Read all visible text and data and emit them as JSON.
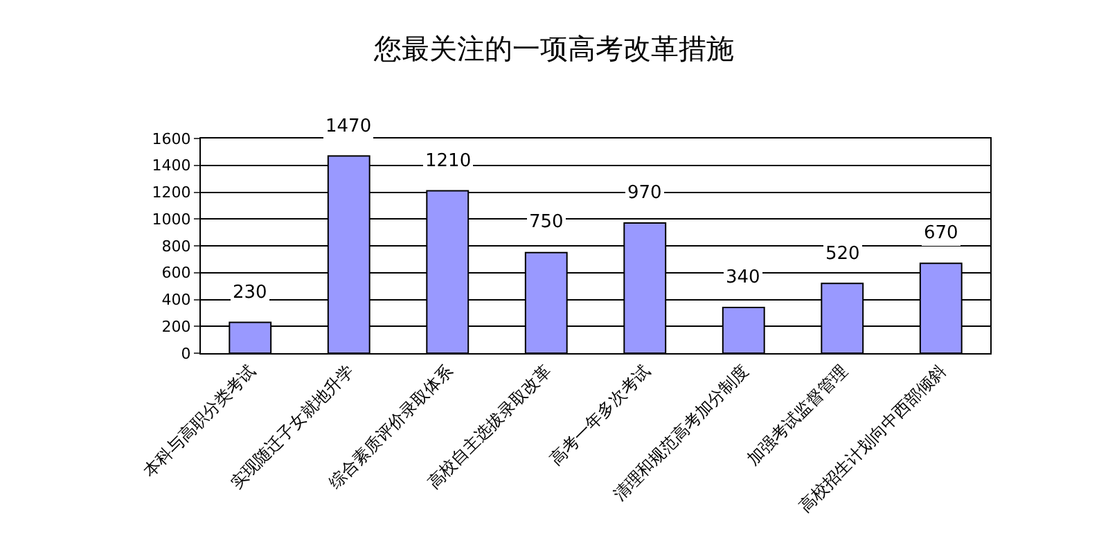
{
  "chart_data": {
    "type": "bar",
    "title": "您最关注的一项高考改革措施",
    "categories": [
      "本科与高职分类考试",
      "实现随迁子女就地升学",
      "综合素质评价录取体系",
      "高校自主选拔录取改革",
      "高考一年多次考试",
      "清理和规范高考加分制度",
      "加强考试监督管理",
      "高校招生计划向中西部倾斜"
    ],
    "values": [
      230,
      1470,
      1210,
      750,
      970,
      340,
      520,
      670
    ],
    "color": "#9999ff",
    "data_labels": true,
    "ylim": [
      0,
      1600
    ],
    "yticks": [
      0,
      200,
      400,
      600,
      800,
      1000,
      1200,
      1400,
      1600
    ],
    "grid": "y",
    "legend": false
  }
}
